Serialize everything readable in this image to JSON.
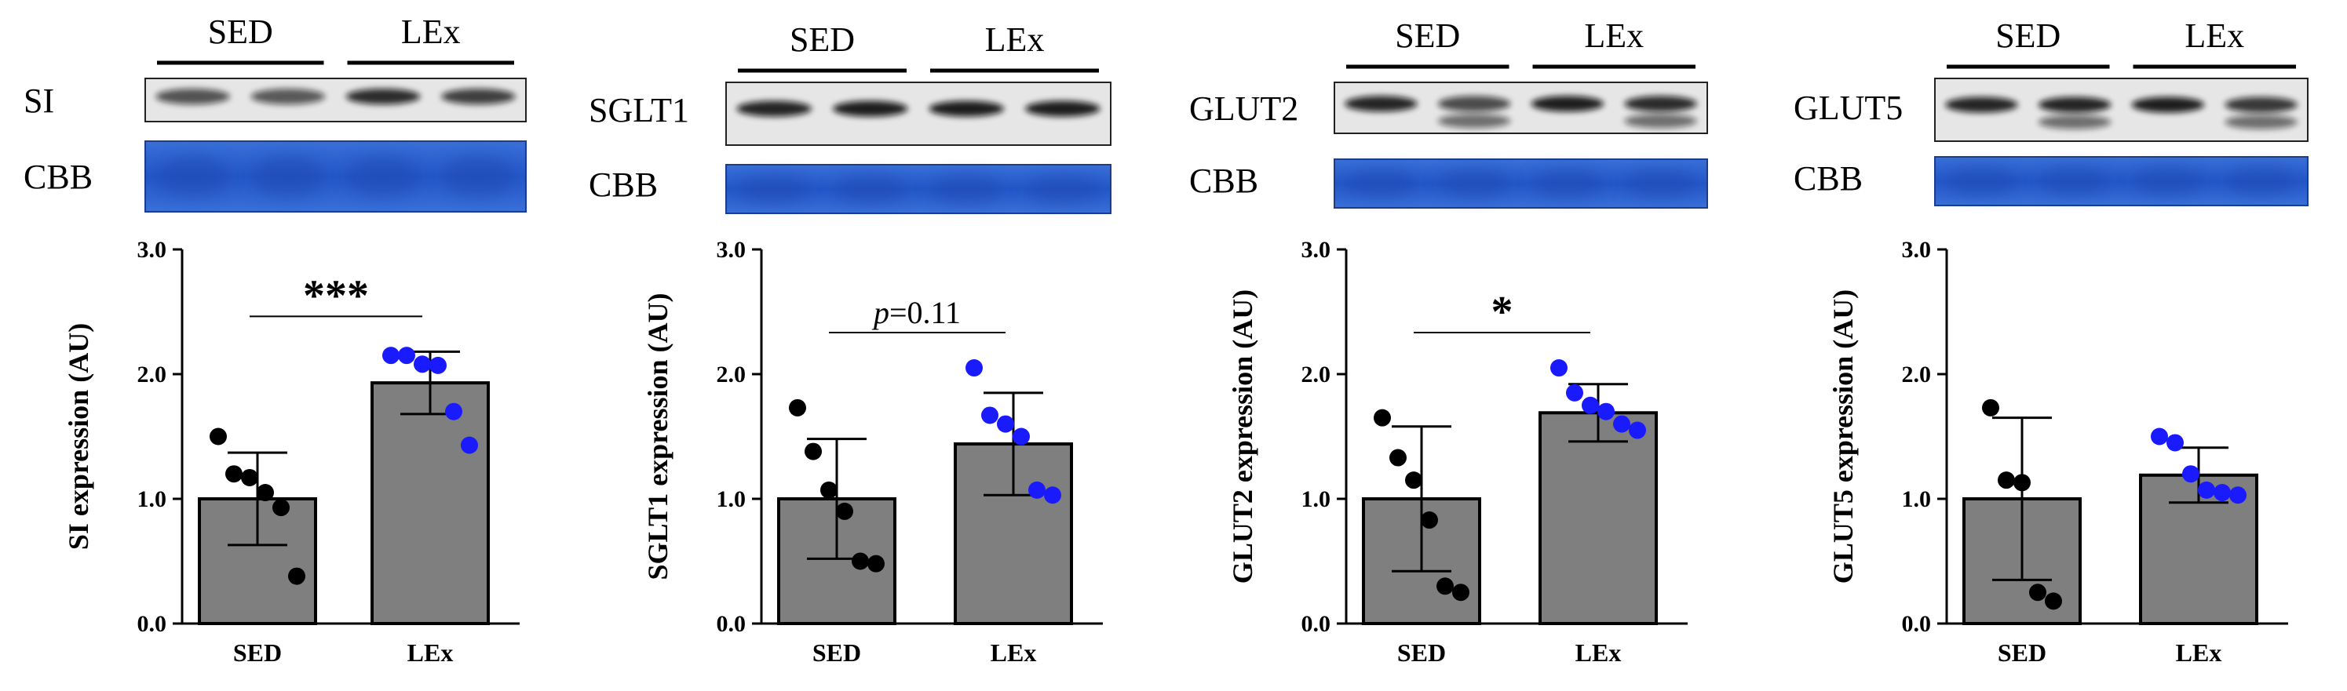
{
  "chart_data": [
    {
      "type": "bar",
      "protein": "SI",
      "loading_control": "CBB",
      "group_headers": [
        "SED",
        "LEx"
      ],
      "categories": [
        "SED",
        "LEx"
      ],
      "ylabel": "SI expression (AU)",
      "ylim": [
        0,
        3
      ],
      "yticks": [
        "0.0",
        "1.0",
        "2.0",
        "3.0"
      ],
      "values": [
        1.0,
        1.93
      ],
      "errors": [
        0.37,
        0.25
      ],
      "points": [
        [
          1.5,
          1.2,
          1.17,
          1.05,
          0.93,
          0.38
        ],
        [
          2.15,
          2.15,
          2.08,
          2.07,
          1.7,
          1.43
        ]
      ],
      "point_colors": [
        "#000000",
        "#1a1aff"
      ],
      "significance": "***",
      "bands": {
        "target": [
          0.55,
          0.5,
          0.85,
          0.7
        ],
        "lower": [
          false,
          false,
          false,
          false
        ]
      }
    },
    {
      "type": "bar",
      "protein": "SGLT1",
      "loading_control": "CBB",
      "group_headers": [
        "SED",
        "LEx"
      ],
      "categories": [
        "SED",
        "LEx"
      ],
      "ylabel": "SGLT1 expression (AU)",
      "ylim": [
        0,
        3
      ],
      "yticks": [
        "0.0",
        "1.0",
        "2.0",
        "3.0"
      ],
      "values": [
        1.0,
        1.44
      ],
      "errors": [
        0.48,
        0.41
      ],
      "points": [
        [
          1.73,
          1.38,
          1.07,
          0.9,
          0.5,
          0.48
        ],
        [
          2.05,
          1.67,
          1.6,
          1.5,
          1.07,
          1.03
        ]
      ],
      "point_colors": [
        "#000000",
        "#1a1aff"
      ],
      "significance_p": "0.11",
      "bands": {
        "target": [
          0.9,
          0.95,
          0.95,
          0.95
        ],
        "lower": [
          false,
          false,
          false,
          false
        ]
      }
    },
    {
      "type": "bar",
      "protein": "GLUT2",
      "loading_control": "CBB",
      "group_headers": [
        "SED",
        "LEx"
      ],
      "categories": [
        "SED",
        "LEx"
      ],
      "ylabel": "GLUT2 expression (AU)",
      "ylim": [
        0,
        3
      ],
      "yticks": [
        "0.0",
        "1.0",
        "2.0",
        "3.0"
      ],
      "values": [
        1.0,
        1.69
      ],
      "errors": [
        0.58,
        0.23
      ],
      "points": [
        [
          1.65,
          1.33,
          1.15,
          0.83,
          0.3,
          0.25
        ],
        [
          2.05,
          1.85,
          1.75,
          1.7,
          1.6,
          1.55
        ]
      ],
      "point_colors": [
        "#000000",
        "#1a1aff"
      ],
      "significance": "*",
      "bands": {
        "target": [
          0.9,
          0.6,
          0.95,
          0.85
        ],
        "lower": [
          false,
          true,
          false,
          true
        ]
      }
    },
    {
      "type": "bar",
      "protein": "GLUT5",
      "loading_control": "CBB",
      "group_headers": [
        "SED",
        "LEx"
      ],
      "categories": [
        "SED",
        "LEx"
      ],
      "ylabel": "GLUT5 expression (AU)",
      "ylim": [
        0,
        3
      ],
      "yticks": [
        "0.0",
        "1.0",
        "2.0",
        "3.0"
      ],
      "values": [
        1.0,
        1.19
      ],
      "errors": [
        0.65,
        0.22
      ],
      "points": [
        [
          1.73,
          1.15,
          1.13,
          0.25,
          0.18
        ],
        [
          1.5,
          1.45,
          1.2,
          1.07,
          1.05,
          1.03
        ]
      ],
      "point_colors": [
        "#000000",
        "#1a1aff"
      ],
      "bands": {
        "target": [
          0.9,
          0.9,
          0.95,
          0.75
        ],
        "lower": [
          false,
          true,
          false,
          true
        ]
      }
    }
  ]
}
